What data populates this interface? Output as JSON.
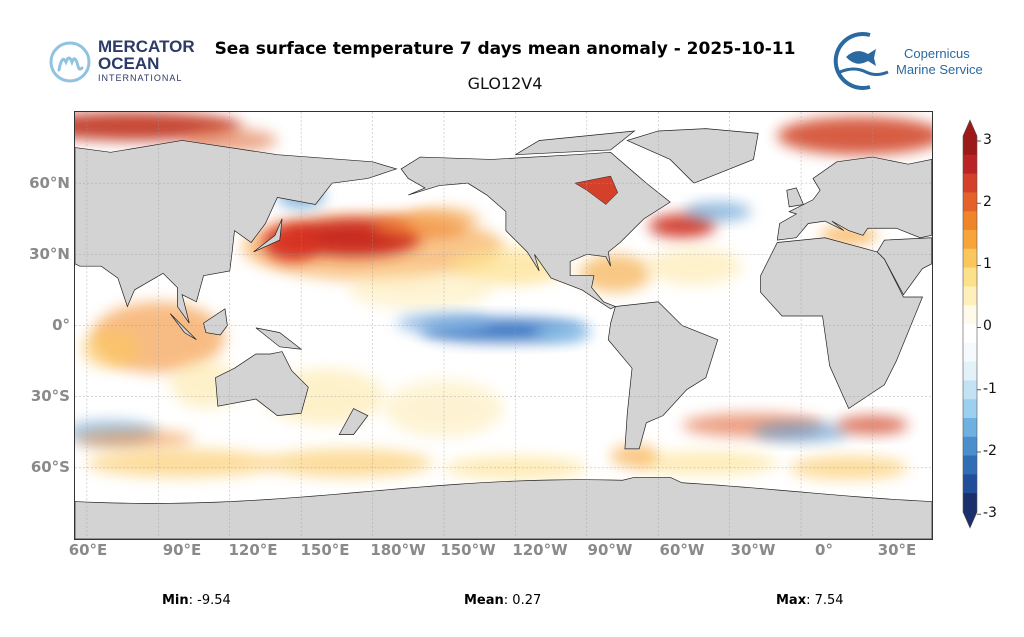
{
  "header": {
    "title": "Sea surface temperature 7 days mean anomaly - 2025-10-11",
    "subtitle": "GLO12V4"
  },
  "logos": {
    "left": {
      "line1": "MERCATOR",
      "line2": "OCEAN",
      "line3": "INTERNATIONAL",
      "icon": "mercator-m-icon",
      "color": "#2b3a67"
    },
    "right": {
      "line1": "Copernicus",
      "line2": "Marine Service",
      "icon": "fish-icon",
      "color": "#2a6aa0"
    }
  },
  "map": {
    "land_color": "#d3d3d3",
    "lat_labels": [
      "60°N",
      "30°N",
      "0°",
      "30°S",
      "60°S"
    ],
    "lon_labels": [
      "60°E",
      "90°E",
      "120°E",
      "150°E",
      "180°W",
      "150°W",
      "120°W",
      "90°W",
      "60°W",
      "30°W",
      "0°",
      "30°E"
    ]
  },
  "colorbar": {
    "ticks": [
      "3",
      "2",
      "1",
      "0",
      "-1",
      "-2",
      "-3"
    ],
    "range": [
      -3,
      3
    ],
    "extend": "both",
    "colors": [
      "#1a2f6b",
      "#214e9a",
      "#2f6db5",
      "#4a8fcc",
      "#6eb0e0",
      "#9bd0f0",
      "#c3e3f5",
      "#e3f1f8",
      "#f5fafc",
      "#ffffff",
      "#fffbea",
      "#fff0bb",
      "#fde08a",
      "#fbc65c",
      "#f7a53a",
      "#f08428",
      "#e5612a",
      "#d4402a",
      "#bb2424",
      "#9c1a1a"
    ]
  },
  "stats": {
    "min_label": "Min",
    "min_value": "-9.54",
    "mean_label": "Mean",
    "mean_value": "0.27",
    "max_label": "Max",
    "max_value": "7.54"
  }
}
